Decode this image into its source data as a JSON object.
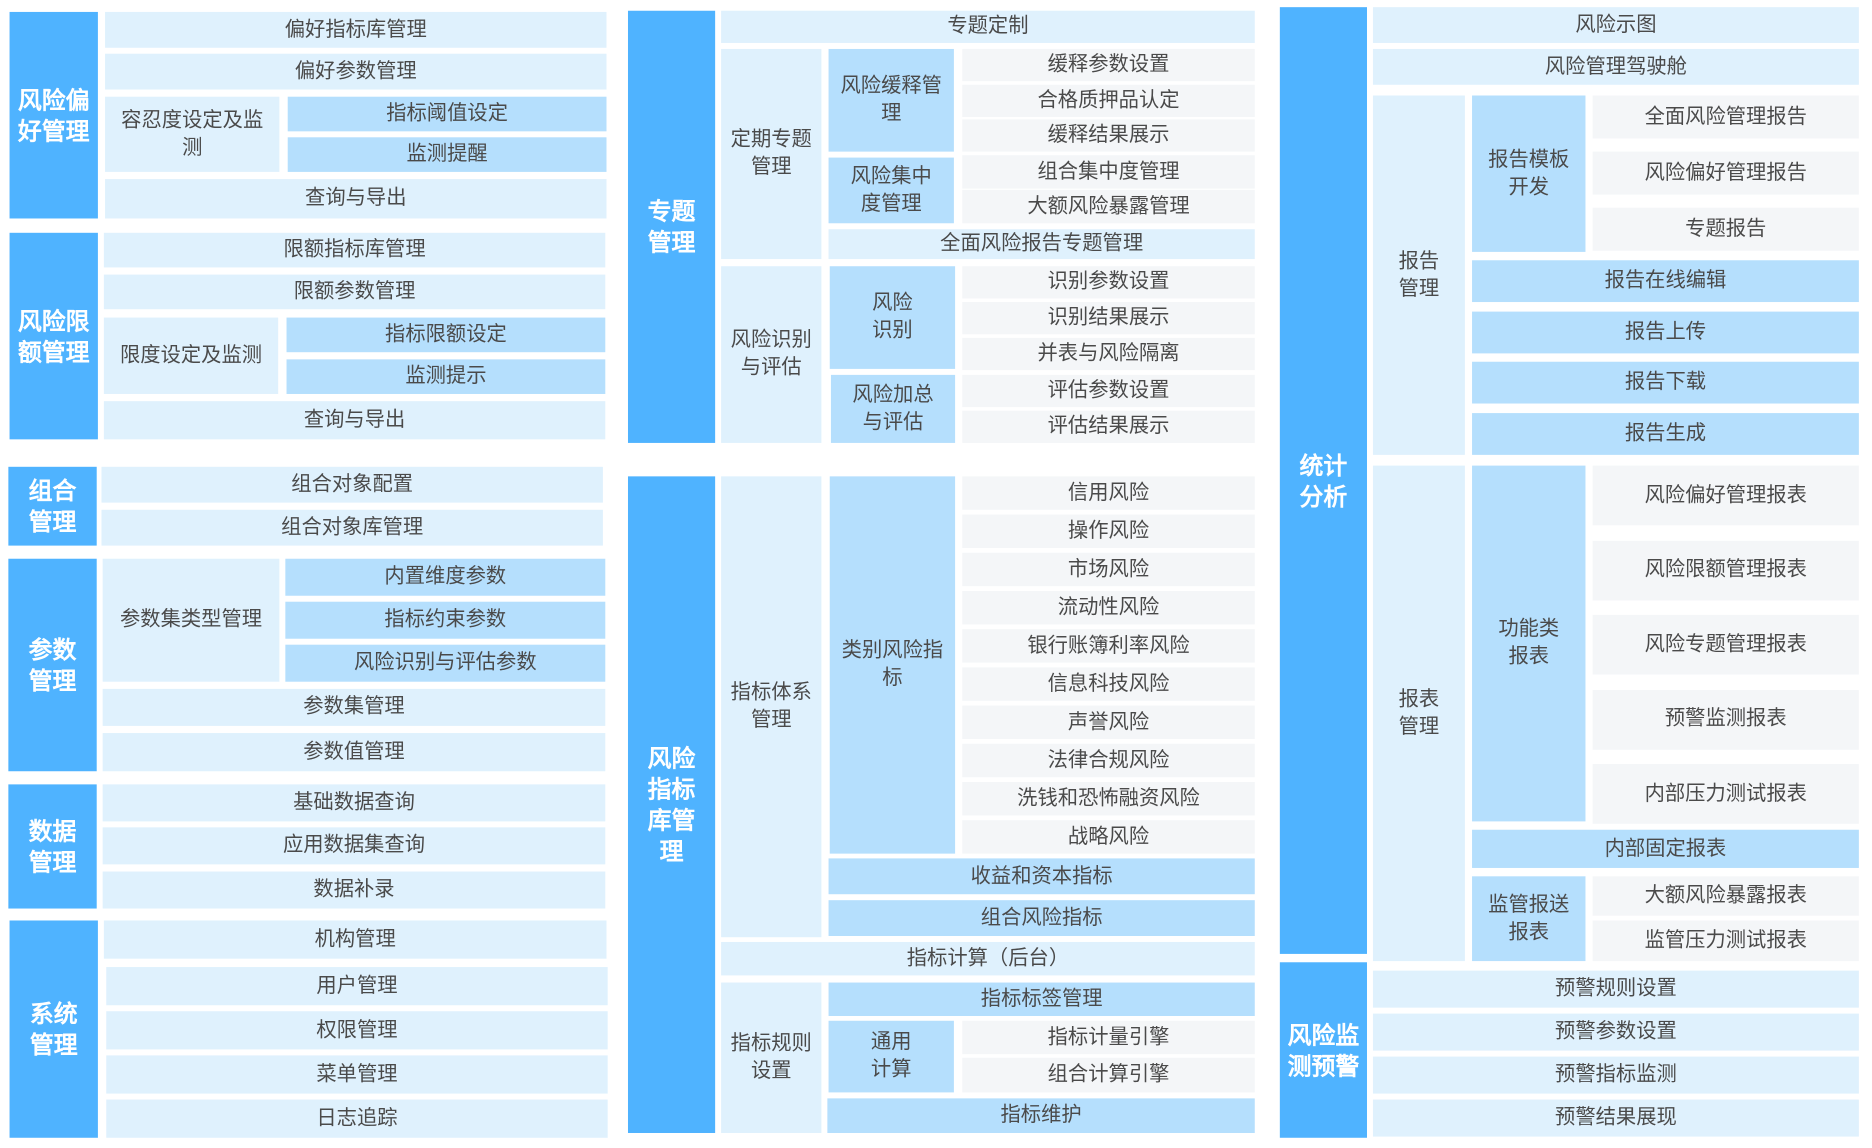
{
  "colors": {
    "primary": "#4fb3ff",
    "light": "#dff1fd",
    "medium": "#b5dffd",
    "grey": "#f4f6f8",
    "text": "#4a4a4a"
  },
  "appetite": {
    "title": "风险偏\n好管理",
    "library": "偏好指标库管理",
    "params": "偏好参数管理",
    "tolerance": {
      "label": "容忍度设定及监\n测",
      "threshold": "指标阈值设定",
      "alert": "监测提醒"
    },
    "query": "查询与导出"
  },
  "limit": {
    "title": "风险限\n额管理",
    "library": "限额指标库管理",
    "params": "限额参数管理",
    "setting": {
      "label": "限度设定及监测",
      "limit_set": "指标限额设定",
      "hint": "监测提示"
    },
    "query": "查询与导出"
  },
  "portfolio": {
    "title": "组合\n管理",
    "items": [
      "组合对象配置",
      "组合对象库管理"
    ]
  },
  "parameter": {
    "title": "参数\n管理",
    "type_mgmt": {
      "label": "参数集类型管理",
      "items": [
        "内置维度参数",
        "指标约束参数",
        "风险识别与评估参数"
      ]
    },
    "items": [
      "参数集管理",
      "参数值管理"
    ]
  },
  "data": {
    "title": "数据\n管理",
    "items": [
      "基础数据查询",
      "应用数据集查询",
      "数据补录"
    ]
  },
  "system": {
    "title": "系统\n管理",
    "items": [
      "机构管理",
      "用户管理",
      "权限管理",
      "菜单管理",
      "日志追踪"
    ]
  },
  "topic": {
    "title": "专题\n管理",
    "custom": "专题定制",
    "periodic": {
      "label": "定期专题\n管理",
      "mitigation": {
        "label": "风险缓释管\n理",
        "items": [
          "缓释参数设置",
          "合格质押品认定",
          "缓释结果展示"
        ]
      },
      "concentration": {
        "label": "风险集中\n度管理",
        "items": [
          "组合集中度管理",
          "大额风险暴露管理"
        ]
      },
      "full_report": "全面风险报告专题管理"
    },
    "identify_assess": {
      "label": "风险识别\n与评估",
      "identify": {
        "label": "风险\n识别",
        "items": [
          "识别参数设置",
          "识别结果展示",
          "并表与风险隔离"
        ]
      },
      "aggregate": {
        "label": "风险加总\n与评估",
        "items": [
          "评估参数设置",
          "评估结果展示"
        ]
      }
    }
  },
  "indicator": {
    "title": "风险\n指标\n库管\n理",
    "system": {
      "label": "指标体系\n管理",
      "category": {
        "label": "类别风险指\n标",
        "items": [
          "信用风险",
          "操作风险",
          "市场风险",
          "流动性风险",
          "银行账簿利率风险",
          "信息科技风险",
          "声誉风险",
          "法律合规风险",
          "洗钱和恐怖融资风险",
          "战略风险"
        ]
      },
      "capital": "收益和资本指标",
      "portfolio": "组合风险指标"
    },
    "calc": "指标计算（后台）",
    "rules": {
      "label": "指标规则\n设置",
      "tags": "指标标签管理",
      "general": {
        "label": "通用\n计算",
        "items": [
          "指标计量引擎",
          "组合计算引擎"
        ]
      },
      "maintain": "指标维护"
    }
  },
  "stats": {
    "title": "统计\n分析",
    "map": "风险示图",
    "cockpit": "风险管理驾驶舱",
    "report": {
      "label": "报告\n管理",
      "template": {
        "label": "报告模板\n开发",
        "items": [
          "全面风险管理报告",
          "风险偏好管理报告",
          "专题报告"
        ]
      },
      "items": [
        "报告在线编辑",
        "报告上传",
        "报告下载",
        "报告生成"
      ]
    },
    "statement": {
      "label": "报表\n管理",
      "functional": {
        "label": "功能类\n报表",
        "items": [
          "风险偏好管理报表",
          "风险限额管理报表",
          "风险专题管理报表",
          "预警监测报表",
          "内部压力测试报表"
        ]
      },
      "internal": "内部固定报表",
      "regulatory": {
        "label": "监管报送\n报表",
        "items": [
          "大额风险暴露报表",
          "监管压力测试报表"
        ]
      }
    }
  },
  "warning": {
    "title": "风险监\n测预警",
    "items": [
      "预警规则设置",
      "预警参数设置",
      "预警指标监测",
      "预警结果展现"
    ]
  }
}
